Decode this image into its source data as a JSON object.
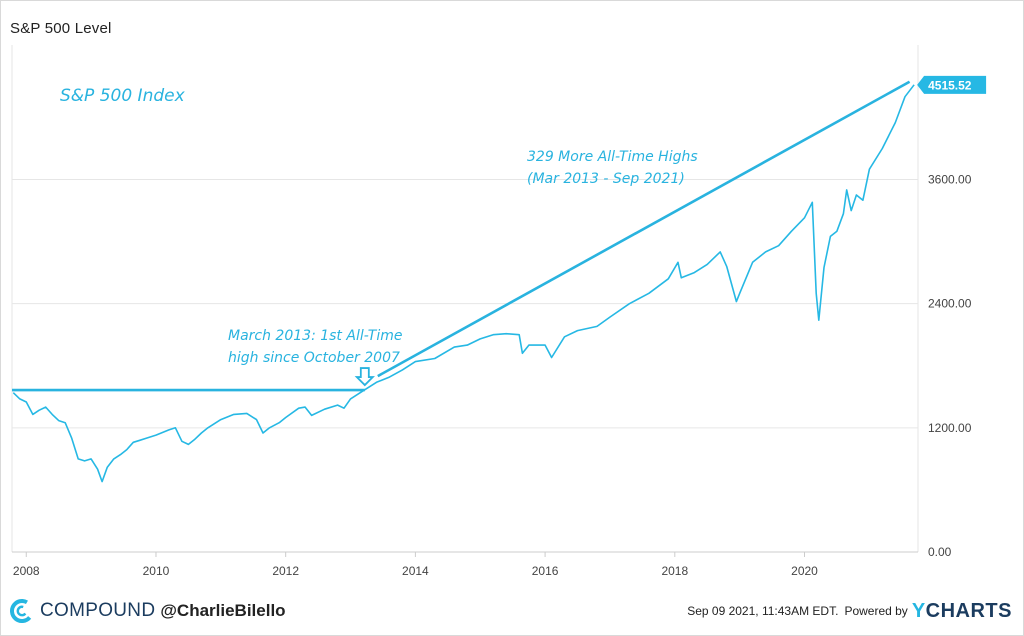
{
  "header": {
    "title": "S&P 500 Level"
  },
  "footer": {
    "brand": "COMPOUND",
    "handle": "@CharlieBilello",
    "timestamp": "Sep 09 2021, 11:43AM EDT.",
    "powered": "Powered by",
    "provider_y": "Y",
    "provider_rest": "CHARTS"
  },
  "colors": {
    "line": "#26b8e4",
    "annotation": "#29b3df",
    "grid": "#e6e6e6",
    "axis_text": "#444444",
    "brand": "#1b3c5f"
  },
  "chart_data": {
    "type": "line",
    "title": "S&P 500 Level",
    "xlabel": "",
    "ylabel": "",
    "xlim": [
      2007.78,
      2021.75
    ],
    "ylim": [
      0,
      4900
    ],
    "grid": true,
    "x_ticks": [
      2008,
      2010,
      2012,
      2014,
      2016,
      2018,
      2020
    ],
    "x_tick_labels": [
      "2008",
      "2010",
      "2012",
      "2014",
      "2016",
      "2018",
      "2020"
    ],
    "y_ticks": [
      0,
      1200,
      2400,
      3600
    ],
    "y_tick_labels": [
      "0.00",
      "1200.00",
      "2400.00",
      "3600.00"
    ],
    "series": [
      {
        "x": [
          2007.8,
          2007.9,
          2008.0,
          2008.1,
          2008.2,
          2008.3,
          2008.4,
          2008.5,
          2008.6,
          2008.7,
          2008.8,
          2008.9,
          2009.0,
          2009.1,
          2009.17,
          2009.25,
          2009.35,
          2009.45,
          2009.55,
          2009.65,
          2009.75,
          2009.85,
          2010.0,
          2010.2,
          2010.3,
          2010.4,
          2010.5,
          2010.6,
          2010.7,
          2010.8,
          2011.0,
          2011.2,
          2011.4,
          2011.55,
          2011.65,
          2011.75,
          2011.9,
          2012.0,
          2012.2,
          2012.3,
          2012.4,
          2012.6,
          2012.8,
          2012.9,
          2013.0,
          2013.2,
          2013.4,
          2013.6,
          2013.8,
          2014.0,
          2014.3,
          2014.6,
          2014.8,
          2015.0,
          2015.2,
          2015.4,
          2015.6,
          2015.65,
          2015.75,
          2016.0,
          2016.1,
          2016.3,
          2016.5,
          2016.8,
          2017.0,
          2017.3,
          2017.6,
          2017.9,
          2018.05,
          2018.1,
          2018.3,
          2018.5,
          2018.7,
          2018.8,
          2018.95,
          2019.0,
          2019.2,
          2019.4,
          2019.6,
          2019.8,
          2020.0,
          2020.12,
          2020.18,
          2020.22,
          2020.3,
          2020.4,
          2020.5,
          2020.6,
          2020.65,
          2020.72,
          2020.8,
          2020.9,
          2021.0,
          2021.2,
          2021.4,
          2021.55,
          2021.69
        ],
        "values": [
          1540,
          1480,
          1450,
          1330,
          1370,
          1400,
          1330,
          1270,
          1250,
          1100,
          900,
          880,
          900,
          800,
          680,
          820,
          900,
          940,
          990,
          1060,
          1080,
          1100,
          1130,
          1180,
          1200,
          1070,
          1040,
          1090,
          1150,
          1200,
          1280,
          1330,
          1340,
          1280,
          1150,
          1200,
          1250,
          1300,
          1390,
          1400,
          1320,
          1380,
          1420,
          1390,
          1480,
          1560,
          1640,
          1690,
          1760,
          1840,
          1870,
          1980,
          2000,
          2060,
          2100,
          2110,
          2100,
          1920,
          2000,
          2000,
          1880,
          2080,
          2140,
          2180,
          2270,
          2400,
          2500,
          2640,
          2800,
          2650,
          2700,
          2780,
          2900,
          2760,
          2420,
          2500,
          2800,
          2900,
          2960,
          3100,
          3230,
          3380,
          2500,
          2240,
          2750,
          3050,
          3100,
          3270,
          3500,
          3300,
          3450,
          3400,
          3700,
          3900,
          4150,
          4400,
          4515
        ]
      }
    ],
    "last_value_label": "4515.52",
    "annotations": [
      {
        "text": "S&P 500 Index"
      },
      {
        "text": "329 More All-Time Highs"
      },
      {
        "text": "(Mar 2013 - Sep 2021)"
      },
      {
        "text": "March 2013: 1st All-Time"
      },
      {
        "text": "high since October 2007"
      }
    ],
    "reference_lines": [
      {
        "from": [
          2007.78,
          1565
        ],
        "to": [
          2013.22,
          1565
        ]
      },
      {
        "from": [
          2013.42,
          1700
        ],
        "to": [
          2021.62,
          4545
        ]
      }
    ],
    "marker": {
      "x": 2013.22,
      "y": 1565
    }
  }
}
